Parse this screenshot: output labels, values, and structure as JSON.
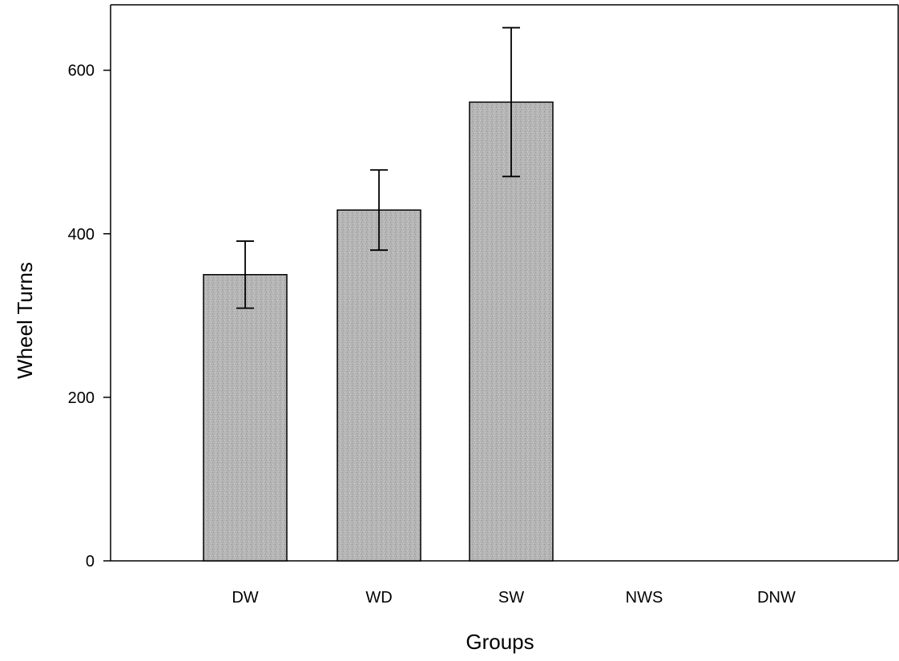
{
  "chart_data": {
    "type": "bar",
    "title": "",
    "xlabel": "Groups",
    "ylabel": "Wheel Turns",
    "categories": [
      "DW",
      "WD",
      "SW",
      "NWS",
      "DNW"
    ],
    "values": [
      350,
      429,
      561,
      0,
      0
    ],
    "error": [
      41,
      49,
      91,
      0,
      0
    ],
    "ylim": [
      0,
      680
    ],
    "yticks": [
      0,
      200,
      400,
      600
    ],
    "grid": false,
    "legend": "none",
    "colors": {
      "bar_fill": "#b8b8b8",
      "bar_stroke": "#000000",
      "axis": "#000000"
    }
  }
}
